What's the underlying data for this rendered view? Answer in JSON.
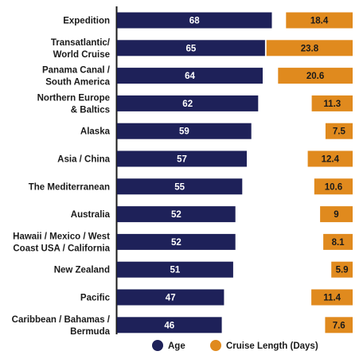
{
  "chart_data": {
    "type": "bar",
    "orientation": "horizontal",
    "categories": [
      "Expedition",
      "Transatlantic/ World Cruise",
      "Panama Canal / South America",
      "Northern Europe & Baltics",
      "Alaska",
      "Asia / China",
      "The Mediterranean",
      "Australia",
      "Hawaii / Mexico / West Coast USA / California",
      "New Zealand",
      "Pacific",
      "Caribbean / Bahamas / Bermuda"
    ],
    "series": [
      {
        "name": "Age",
        "color": "#1e2159",
        "values": [
          68,
          65,
          64,
          62,
          59,
          57,
          55,
          52,
          52,
          51,
          47,
          46
        ]
      },
      {
        "name": "Cruise Length (Days)",
        "color": "#e08a1e",
        "values": [
          18.4,
          23.8,
          20.6,
          11.3,
          7.5,
          12.4,
          10.6,
          9,
          8.1,
          5.9,
          11.4,
          7.6
        ]
      }
    ],
    "legend": "bottom",
    "grid": false
  }
}
